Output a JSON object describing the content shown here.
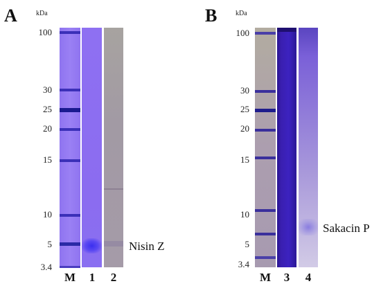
{
  "panels": [
    {
      "letter": "A",
      "unit": "kDa",
      "markers": [
        "100",
        "30",
        "25",
        "20",
        "15",
        "10",
        "5",
        "3.4"
      ],
      "lane_labels": [
        "M",
        "1",
        "2"
      ],
      "annotation": "Nisin Z"
    },
    {
      "letter": "B",
      "unit": "kDa",
      "markers": [
        "100",
        "30",
        "25",
        "20",
        "15",
        "10",
        "5",
        "3.4"
      ],
      "lane_labels": [
        "M",
        "3",
        "4"
      ],
      "annotation": "Sakacin P"
    }
  ],
  "colors": {
    "stain_purple": "#8b6cf0",
    "ladder_band": "#2a2a9a",
    "lane3_dark": "#3a1fb0",
    "faded_lane": "#a79aa6"
  }
}
